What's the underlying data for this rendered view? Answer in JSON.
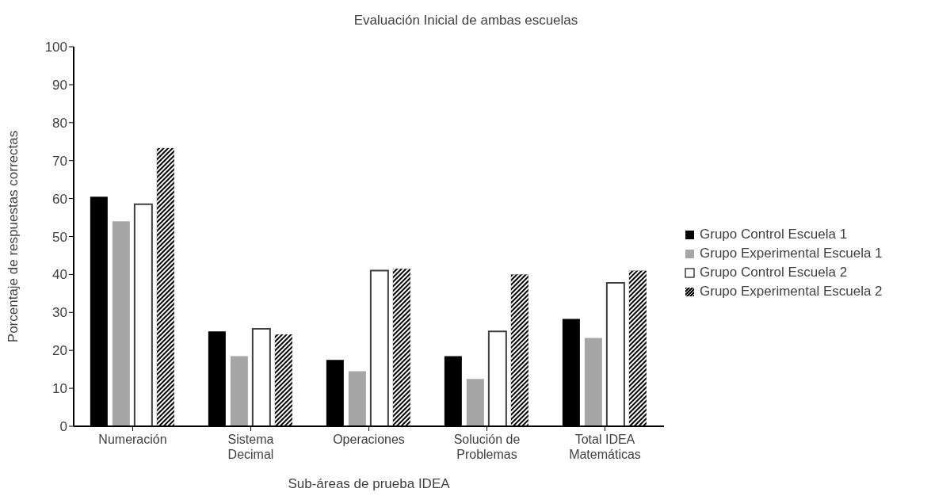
{
  "chart_data": {
    "type": "bar",
    "title": "Evaluación Inicial de ambas escuelas",
    "xlabel": "Sub-áreas de prueba IDEA",
    "ylabel": "Porcentaje de respuestas correctas",
    "categories": [
      "Numeración",
      "Sistema Decimal",
      "Operaciones",
      "Solución de Problemas",
      "Total IDEA Matemáticas"
    ],
    "series": [
      {
        "name": "Grupo Control Escuela 1",
        "color": "#000000",
        "values": [
          60.5,
          25,
          17.5,
          18.5,
          28.3
        ]
      },
      {
        "name": "Grupo Experimental Escuela 1",
        "color": "#a6a6a6",
        "values": [
          54,
          18.5,
          14.5,
          12.5,
          23.3
        ]
      },
      {
        "name": "Grupo Control Escuela 2",
        "color": "#ffffff",
        "values": [
          58.5,
          25.7,
          41,
          25,
          37.8
        ]
      },
      {
        "name": "Grupo Experimental Escuela 2",
        "color": "#000000",
        "values": [
          73.3,
          24.2,
          41.5,
          40,
          41
        ]
      }
    ],
    "ylim": [
      0,
      100
    ],
    "yticks": [
      0,
      10,
      20,
      30,
      40,
      50,
      60,
      70,
      80,
      90,
      100
    ],
    "grid": false,
    "legend": "right"
  }
}
